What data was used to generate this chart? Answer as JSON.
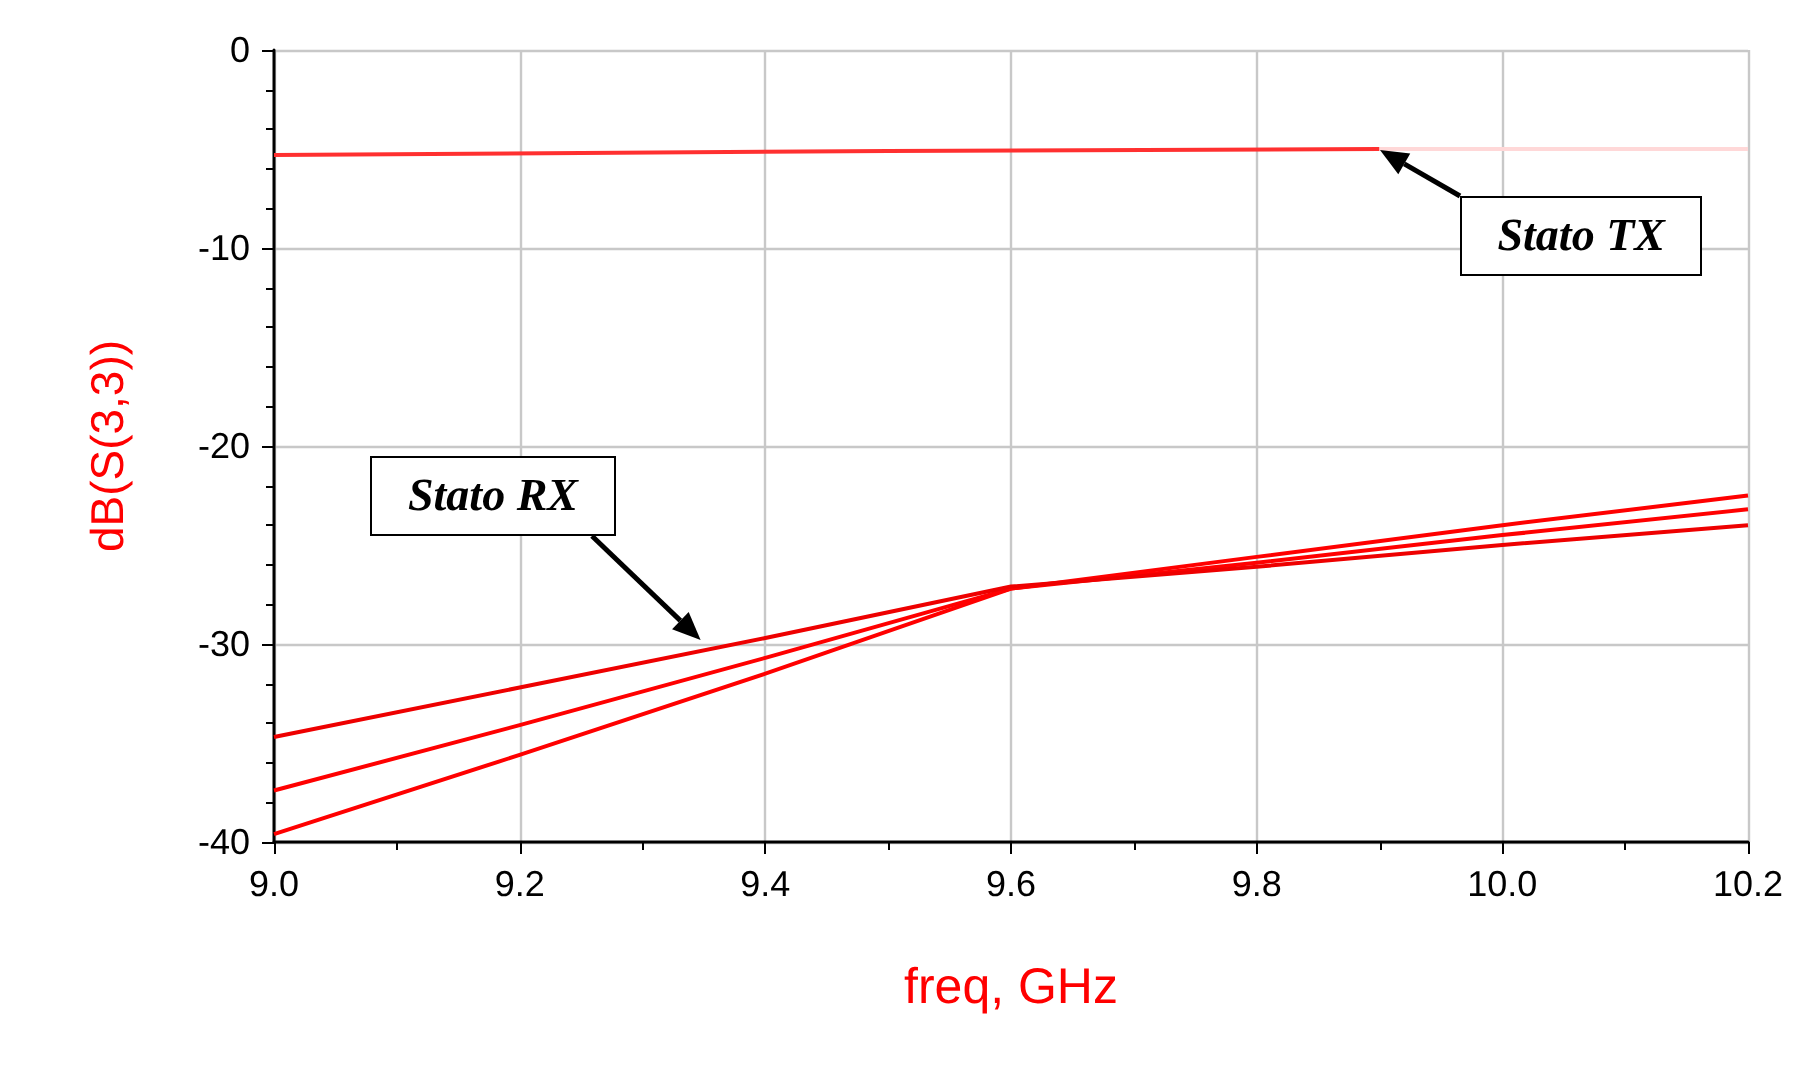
{
  "chart_data": {
    "type": "line",
    "xlabel": "freq, GHz",
    "ylabel": "dB(S(3,3))",
    "series": [
      {
        "color": "#ff3030",
        "x": [
          9.0,
          9.5,
          9.9
        ],
        "values": [
          -5.3,
          -5.1,
          -5.0
        ]
      },
      {
        "color": "#ffd8d8",
        "x": [
          9.9,
          10.2
        ],
        "values": [
          -5.0,
          -5.0
        ]
      },
      {
        "color": "#ff0000",
        "x": [
          9.0,
          9.2,
          9.4,
          9.6,
          9.8,
          10.0,
          10.2
        ],
        "values": [
          -37.4,
          -34.1,
          -30.7,
          -27.2,
          -25.6,
          -24.0,
          -22.5
        ]
      },
      {
        "color": "#ff0000",
        "x": [
          9.0,
          9.2,
          9.4,
          9.6,
          9.8,
          10.0,
          10.2
        ],
        "values": [
          -39.6,
          -35.6,
          -31.5,
          -27.2,
          -25.9,
          -24.5,
          -23.2
        ]
      },
      {
        "color": "#ee0000",
        "x": [
          9.0,
          9.2,
          9.4,
          9.6,
          9.8,
          10.0,
          10.2
        ],
        "values": [
          -34.7,
          -32.2,
          -29.7,
          -27.1,
          -26.1,
          -25.0,
          -24.0
        ]
      }
    ],
    "xlim": [
      9.0,
      10.2
    ],
    "xticks": [
      {
        "value": 9.0,
        "label": "9.0"
      },
      9.2,
      9.4,
      9.6,
      9.8,
      {
        "value": 10.0,
        "label": "10.0"
      },
      10.2
    ],
    "ylim": [
      -40,
      0
    ],
    "yticks": [
      -40,
      -30,
      -20,
      -10,
      0
    ],
    "grid": true,
    "marker": "none",
    "line_style": "solid",
    "annotations": [
      {
        "text": "Stato TX",
        "x": 9.9,
        "y": -5.1
      },
      "Stato RX"
    ]
  }
}
